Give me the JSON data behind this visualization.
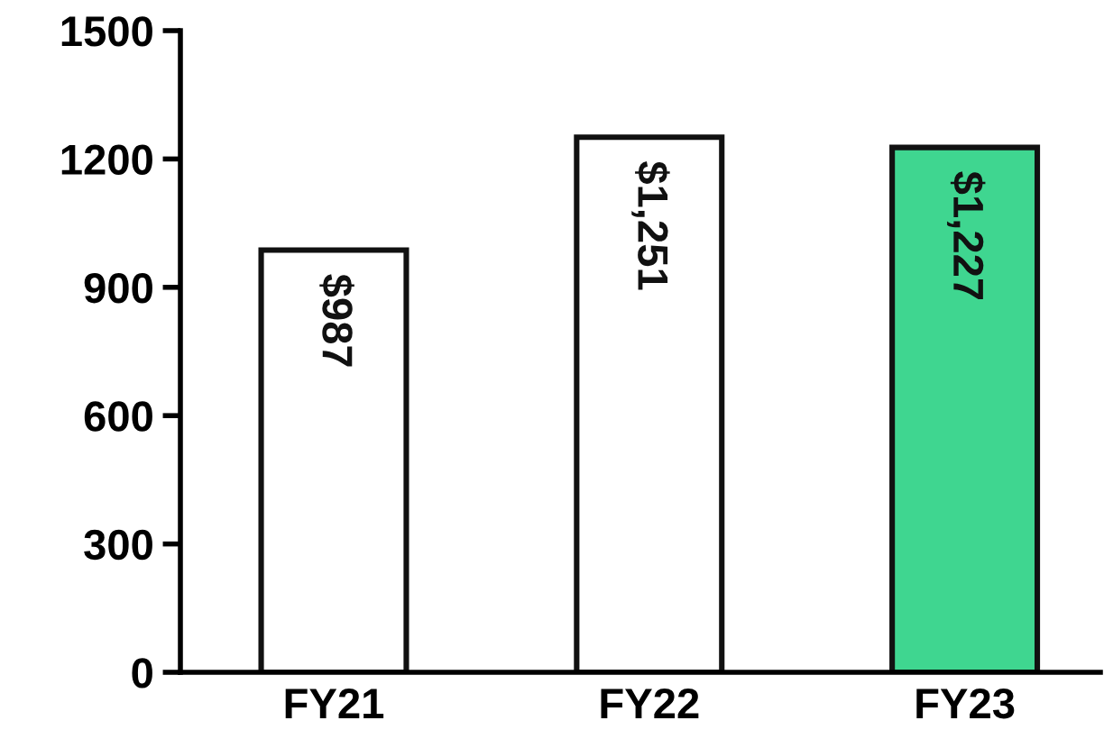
{
  "chart_data": {
    "type": "bar",
    "categories": [
      "FY21",
      "FY22",
      "FY23"
    ],
    "values": [
      987,
      1251,
      1227
    ],
    "colors": [
      "#ffffff",
      "#ffffff",
      "#3fd690"
    ],
    "value_labels": [
      "$987",
      "$1,251",
      "$1,227"
    ],
    "ylim": [
      0,
      1500
    ],
    "yticks": [
      0,
      300,
      600,
      900,
      1200,
      1500
    ],
    "grid": false,
    "legend": false
  }
}
